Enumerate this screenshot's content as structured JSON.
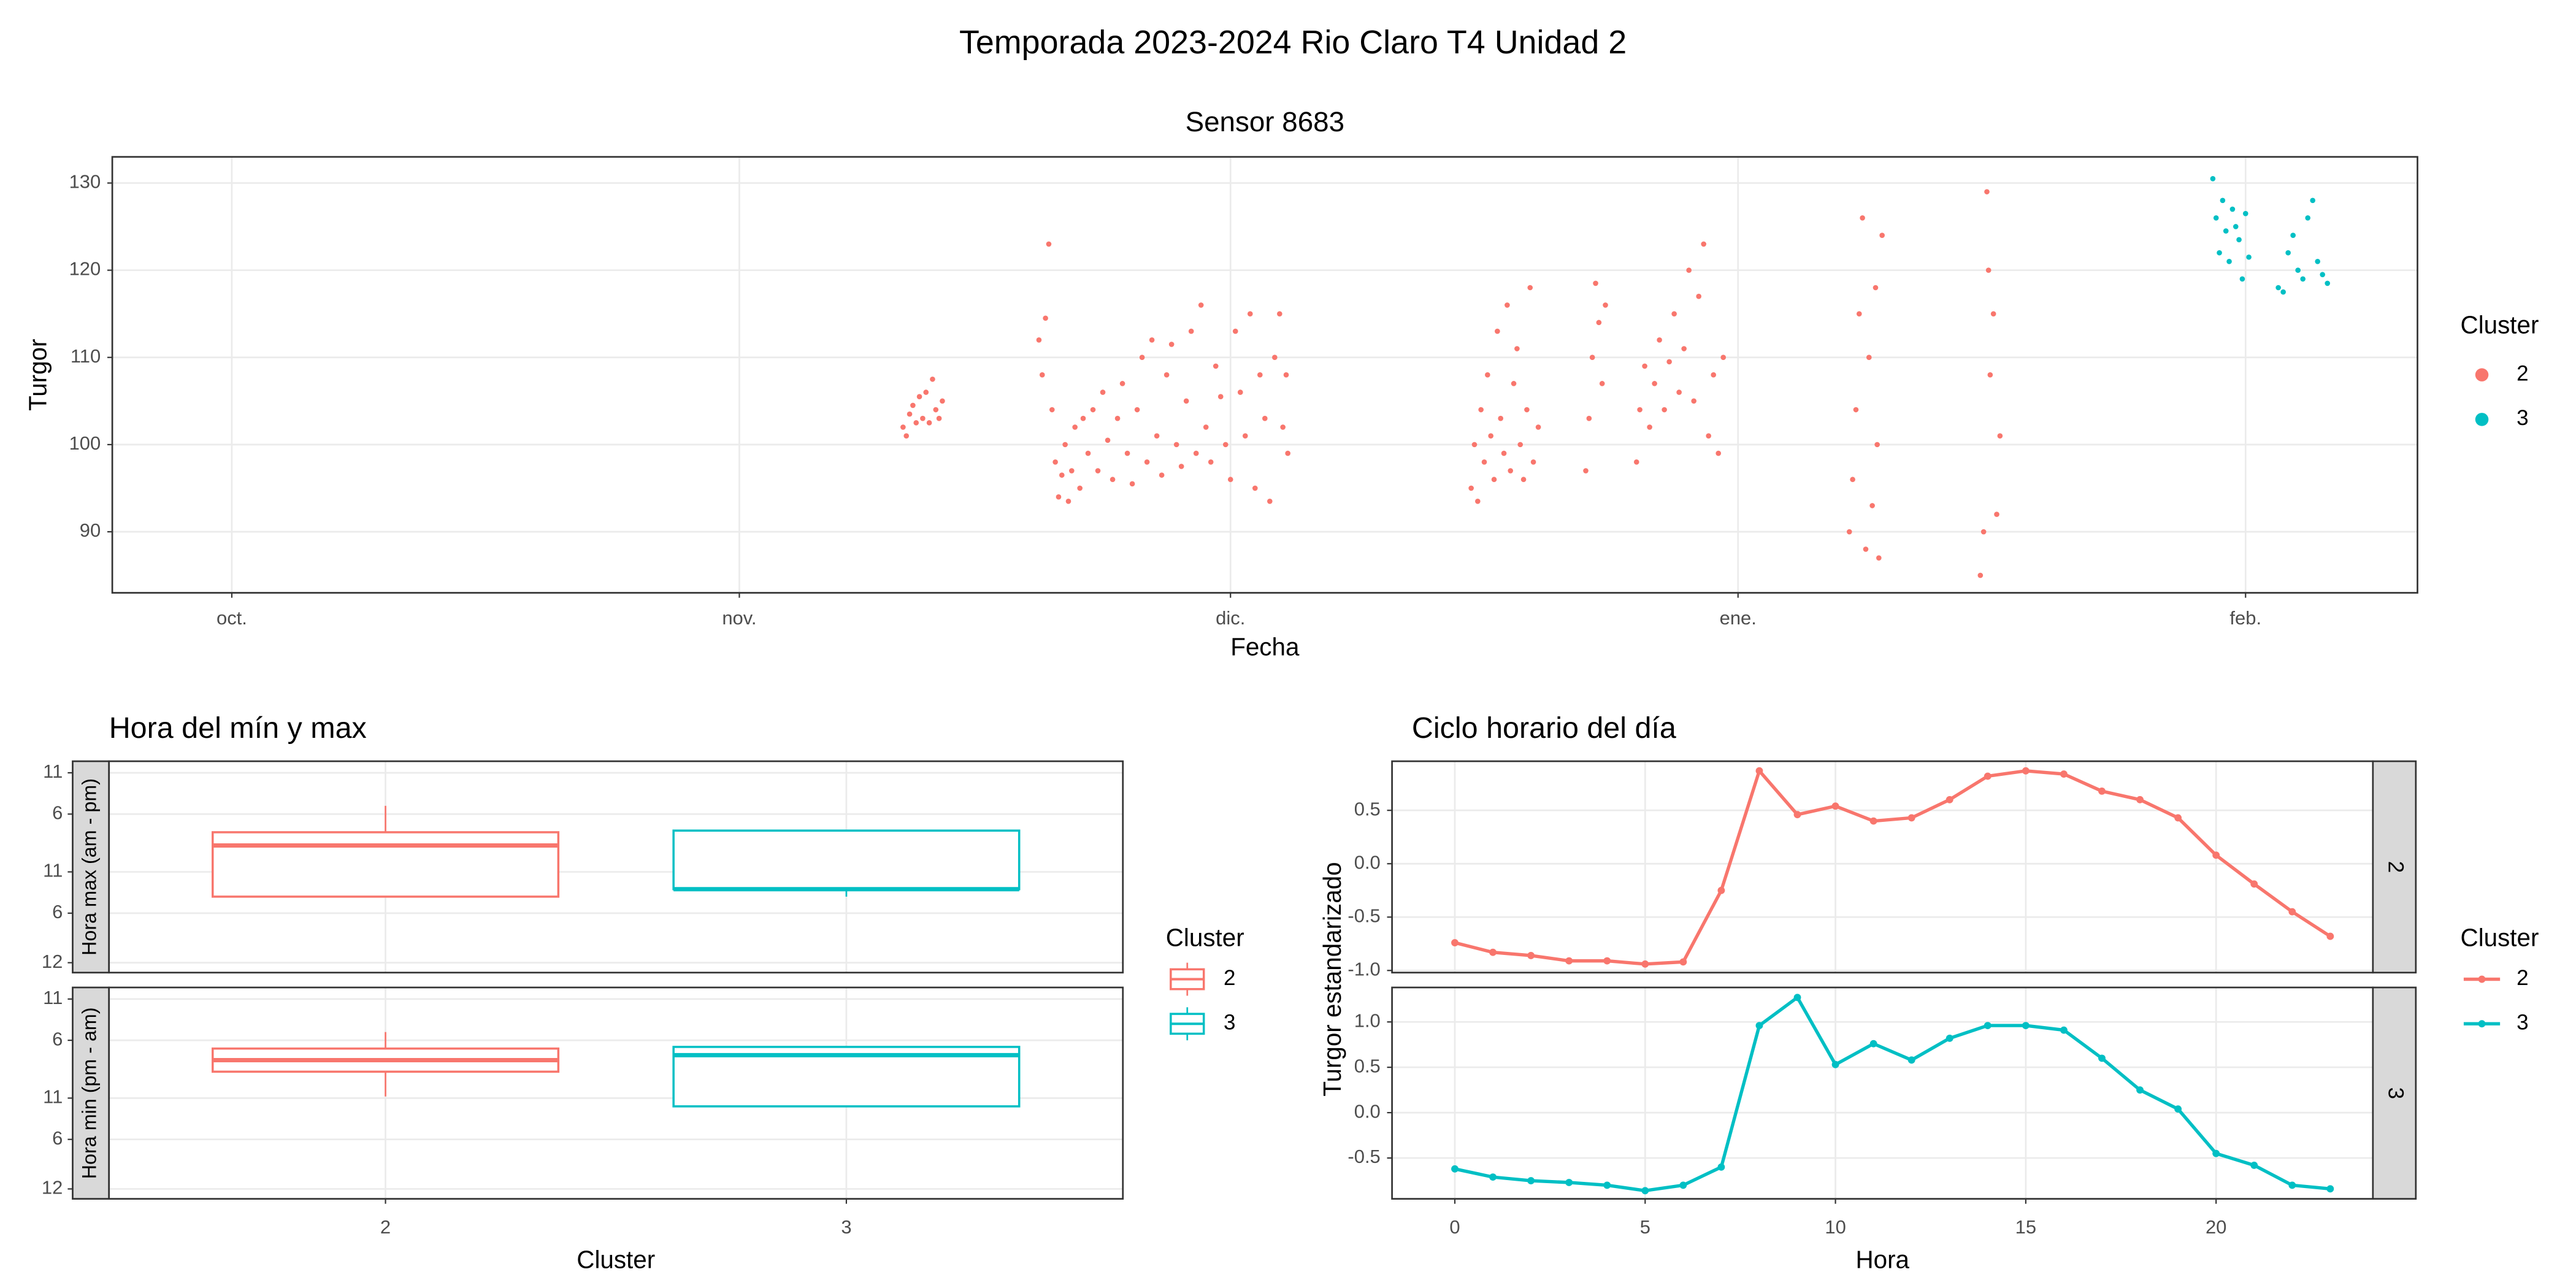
{
  "title": "Temporada 2023-2024 Rio Claro T4 Unidad 2",
  "chart_data": [
    {
      "type": "scatter",
      "title": "Sensor 8683",
      "x_label": "Fecha",
      "y_label": "Turgor",
      "legend_title": "Cluster",
      "xlim": [
        -7.3,
        133.5
      ],
      "ylim": [
        83,
        133
      ],
      "xticks": [
        {
          "value": 0,
          "label": "oct."
        },
        {
          "value": 31,
          "label": "nov."
        },
        {
          "value": 61,
          "label": "dic."
        },
        {
          "value": 92,
          "label": "ene."
        },
        {
          "value": 123,
          "label": "feb."
        }
      ],
      "yticks": [
        90,
        100,
        110,
        120,
        130
      ],
      "grid": true,
      "series": [
        {
          "name": "2",
          "color": "#F8766D",
          "x": [
            41.0,
            41.2,
            41.4,
            41.6,
            41.8,
            42.0,
            42.2,
            42.4,
            42.6,
            42.8,
            43.0,
            43.2,
            43.4,
            49.3,
            49.5,
            49.7,
            49.9,
            50.1,
            50.3,
            50.5,
            50.7,
            50.9,
            51.1,
            51.3,
            51.5,
            51.8,
            52.0,
            52.3,
            52.6,
            52.9,
            53.2,
            53.5,
            53.8,
            54.1,
            54.4,
            54.7,
            55.0,
            55.3,
            55.6,
            55.9,
            56.2,
            56.5,
            56.8,
            57.1,
            57.4,
            57.7,
            58.0,
            58.3,
            58.6,
            58.9,
            59.2,
            59.5,
            59.8,
            60.1,
            60.4,
            60.7,
            61.0,
            61.3,
            61.6,
            61.9,
            62.2,
            62.5,
            62.8,
            63.1,
            63.4,
            63.7,
            64.0,
            64.2,
            64.4,
            64.5,
            75.7,
            75.9,
            76.1,
            76.3,
            76.5,
            76.7,
            76.9,
            77.1,
            77.3,
            77.5,
            77.7,
            77.9,
            78.1,
            78.3,
            78.5,
            78.7,
            78.9,
            79.1,
            79.3,
            79.5,
            79.8,
            82.7,
            82.9,
            83.1,
            83.3,
            83.5,
            83.7,
            83.9,
            85.8,
            86.0,
            86.3,
            86.6,
            86.9,
            87.2,
            87.5,
            87.8,
            88.1,
            88.4,
            88.7,
            89.0,
            89.3,
            89.6,
            89.9,
            90.2,
            90.5,
            90.8,
            91.1,
            98.8,
            99.0,
            99.2,
            99.4,
            99.6,
            99.8,
            100.0,
            100.2,
            100.4,
            100.6,
            100.8,
            100.5,
            106.8,
            107.0,
            107.2,
            107.4,
            107.6,
            107.8,
            108.0,
            107.3
          ],
          "values": [
            102.0,
            101.0,
            103.5,
            104.5,
            102.5,
            105.5,
            103.0,
            106.0,
            102.5,
            107.5,
            104.0,
            103.0,
            105.0,
            112.0,
            108.0,
            114.5,
            123.0,
            104.0,
            98.0,
            94.0,
            96.5,
            100.0,
            93.5,
            97.0,
            102.0,
            95.0,
            103.0,
            99.0,
            104.0,
            97.0,
            106.0,
            100.5,
            96.0,
            103.0,
            107.0,
            99.0,
            95.5,
            104.0,
            110.0,
            98.0,
            112.0,
            101.0,
            96.5,
            108.0,
            111.5,
            100.0,
            97.5,
            105.0,
            113.0,
            99.0,
            116.0,
            102.0,
            98.0,
            109.0,
            105.5,
            100.0,
            96.0,
            113.0,
            106.0,
            101.0,
            115.0,
            95.0,
            108.0,
            103.0,
            93.5,
            110.0,
            115.0,
            102.0,
            108.0,
            99.0,
            95.0,
            100.0,
            93.5,
            104.0,
            98.0,
            108.0,
            101.0,
            96.0,
            113.0,
            103.0,
            99.0,
            116.0,
            97.0,
            107.0,
            111.0,
            100.0,
            96.0,
            104.0,
            118.0,
            98.0,
            102.0,
            97.0,
            103.0,
            110.0,
            118.5,
            114.0,
            107.0,
            116.0,
            98.0,
            104.0,
            109.0,
            102.0,
            107.0,
            112.0,
            104.0,
            109.5,
            115.0,
            106.0,
            111.0,
            120.0,
            105.0,
            117.0,
            123.0,
            101.0,
            108.0,
            99.0,
            110.0,
            90.0,
            96.0,
            104.0,
            115.0,
            126.0,
            88.0,
            110.0,
            93.0,
            118.0,
            87.0,
            124.0,
            100.0,
            85.0,
            90.0,
            129.0,
            108.0,
            115.0,
            92.0,
            101.0,
            120.0
          ]
        },
        {
          "name": "3",
          "color": "#00BFC4",
          "x": [
            121.0,
            121.2,
            121.4,
            121.6,
            121.8,
            122.0,
            122.2,
            122.4,
            122.6,
            122.8,
            123.0,
            123.2,
            125.0,
            125.3,
            125.6,
            125.9,
            126.2,
            126.5,
            126.8,
            127.1,
            127.4,
            127.7,
            128.0
          ],
          "values": [
            130.5,
            126.0,
            122.0,
            128.0,
            124.5,
            121.0,
            127.0,
            125.0,
            123.5,
            119.0,
            126.5,
            121.5,
            118.0,
            117.5,
            122.0,
            124.0,
            120.0,
            119.0,
            126.0,
            128.0,
            121.0,
            119.5,
            118.5
          ]
        }
      ]
    },
    {
      "type": "box",
      "title": "Hora del mín y max",
      "x_label": "Cluster",
      "legend_title": "Cluster",
      "categories": [
        "2",
        "3"
      ],
      "colors": [
        "#F8766D",
        "#00BFC4"
      ],
      "ylim": [
        -1.2,
        24.4
      ],
      "yticks": [
        {
          "value": 0,
          "label": "12"
        },
        6,
        {
          "value": 11,
          "label": "11"
        },
        {
          "value": 18,
          "label": "6"
        },
        {
          "value": 23,
          "label": "11"
        }
      ],
      "panels": [
        {
          "name": "Hora max (am - pm)",
          "boxes": [
            {
              "whisker_low": 8,
              "q1": 8,
              "median": 14.2,
              "q3": 15.8,
              "whisker_high": 19
            },
            {
              "whisker_low": 8,
              "q1": 8.9,
              "median": 8.9,
              "q3": 16,
              "whisker_high": 16
            }
          ]
        },
        {
          "name": "Hora min (pm - am)",
          "boxes": [
            {
              "whisker_low": 11.2,
              "q1": 14.2,
              "median": 15.6,
              "q3": 17,
              "whisker_high": 19
            },
            {
              "whisker_low": 10,
              "q1": 10,
              "median": 16.2,
              "q3": 17.2,
              "whisker_high": 17.2
            }
          ]
        }
      ]
    },
    {
      "type": "line",
      "title": "Ciclo horario del día",
      "x_label": "Hora",
      "y_label": "Turgor estandarizado",
      "legend_title": "Cluster",
      "x": [
        0,
        1,
        2,
        3,
        4,
        5,
        6,
        7,
        8,
        9,
        10,
        11,
        12,
        13,
        14,
        15,
        16,
        17,
        18,
        19,
        20,
        21,
        22,
        23
      ],
      "xlim": [
        -1.65,
        24.12
      ],
      "xticks": [
        0,
        5,
        10,
        15,
        20
      ],
      "series": [
        {
          "name": "2",
          "color": "#F8766D",
          "ylim": [
            -1.02,
            0.96
          ],
          "yticks": [
            {
              "value": -1,
              "label": "-1.0"
            },
            -0.5,
            {
              "value": 0,
              "label": "0.0"
            },
            0.5
          ],
          "values": [
            -0.74,
            -0.83,
            -0.86,
            -0.91,
            -0.91,
            -0.94,
            -0.92,
            -0.25,
            0.87,
            0.46,
            0.54,
            0.4,
            0.43,
            0.6,
            0.82,
            0.87,
            0.84,
            0.68,
            0.6,
            0.43,
            0.08,
            -0.19,
            -0.45,
            -0.68
          ]
        },
        {
          "name": "3",
          "color": "#00BFC4",
          "ylim": [
            -0.95,
            1.38
          ],
          "yticks": [
            -0.5,
            {
              "value": 0,
              "label": "0.0"
            },
            0.5,
            {
              "value": 1,
              "label": "1.0"
            }
          ],
          "values": [
            -0.62,
            -0.71,
            -0.75,
            -0.77,
            -0.8,
            -0.86,
            -0.8,
            -0.6,
            0.96,
            1.27,
            0.53,
            0.76,
            0.58,
            0.82,
            0.96,
            0.96,
            0.91,
            0.6,
            0.25,
            0.04,
            -0.45,
            -0.58,
            -0.8,
            -0.84
          ]
        }
      ]
    }
  ]
}
